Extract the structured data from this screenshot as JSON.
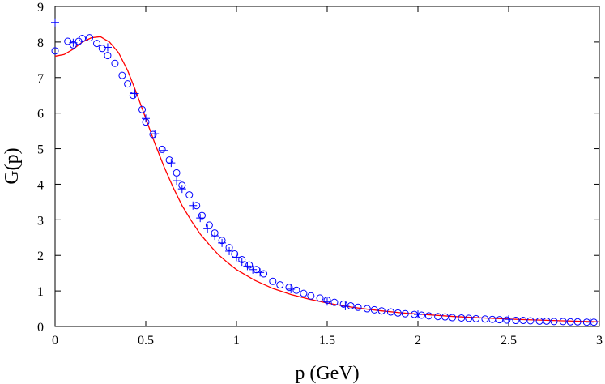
{
  "chart_data": {
    "type": "scatter",
    "xlabel": "p (GeV)",
    "ylabel": "G(p)",
    "xlim": [
      0,
      3
    ],
    "ylim": [
      0,
      9
    ],
    "xticks": [
      "0",
      "0.5",
      "1",
      "1.5",
      "2",
      "2.5",
      "3"
    ],
    "xtick_values": [
      0,
      0.5,
      1,
      1.5,
      2,
      2.5,
      3
    ],
    "yticks": [
      "0",
      "1",
      "2",
      "3",
      "4",
      "5",
      "6",
      "7",
      "8",
      "9"
    ],
    "ytick_values": [
      0,
      1,
      2,
      3,
      4,
      5,
      6,
      7,
      8,
      9
    ],
    "grid": false,
    "series": [
      {
        "marker": "circle",
        "color": "#0000ff",
        "x": [
          0,
          0.07,
          0.1,
          0.13,
          0.15,
          0.19,
          0.23,
          0.26,
          0.29,
          0.33,
          0.37,
          0.4,
          0.43,
          0.48,
          0.5,
          0.54,
          0.59,
          0.63,
          0.67,
          0.7,
          0.74,
          0.78,
          0.81,
          0.85,
          0.88,
          0.92,
          0.96,
          0.99,
          1.03,
          1.07,
          1.11,
          1.15,
          1.2,
          1.24,
          1.29,
          1.33,
          1.37,
          1.41,
          1.46,
          1.5,
          1.54,
          1.59,
          1.63,
          1.67,
          1.72,
          1.76,
          1.8,
          1.85,
          1.89,
          1.93,
          1.98,
          2.02,
          2.06,
          2.11,
          2.15,
          2.19,
          2.24,
          2.28,
          2.32,
          2.37,
          2.41,
          2.45,
          2.49,
          2.54,
          2.58,
          2.62,
          2.67,
          2.71,
          2.75,
          2.8,
          2.84,
          2.88,
          2.93,
          2.97
        ],
        "y": [
          7.75,
          8.02,
          7.92,
          8.02,
          8.1,
          8.12,
          7.96,
          7.82,
          7.62,
          7.4,
          7.06,
          6.82,
          6.5,
          6.1,
          5.75,
          5.4,
          4.98,
          4.68,
          4.32,
          3.97,
          3.7,
          3.4,
          3.12,
          2.85,
          2.63,
          2.42,
          2.22,
          2.04,
          1.88,
          1.73,
          1.6,
          1.48,
          1.27,
          1.17,
          1.1,
          1.02,
          0.93,
          0.86,
          0.8,
          0.74,
          0.68,
          0.63,
          0.58,
          0.54,
          0.5,
          0.47,
          0.44,
          0.41,
          0.38,
          0.36,
          0.34,
          0.32,
          0.3,
          0.28,
          0.27,
          0.25,
          0.24,
          0.23,
          0.22,
          0.21,
          0.2,
          0.19,
          0.18,
          0.17,
          0.17,
          0.16,
          0.15,
          0.15,
          0.14,
          0.14,
          0.13,
          0.13,
          0.12,
          0.12
        ]
      },
      {
        "marker": "plus",
        "color": "#0000ff",
        "x": [
          0,
          0.1,
          0.29,
          0.44,
          0.5,
          0.55,
          0.6,
          0.64,
          0.67,
          0.7,
          0.76,
          0.8,
          0.84,
          0.88,
          0.92,
          0.96,
          1.0,
          1.03,
          1.06,
          1.09,
          1.13,
          1.3,
          1.5,
          1.6,
          2.0,
          2.5,
          2.95
        ],
        "y": [
          8.55,
          7.98,
          7.85,
          6.55,
          5.85,
          5.42,
          4.95,
          4.6,
          4.1,
          3.87,
          3.4,
          3.05,
          2.75,
          2.55,
          2.35,
          2.12,
          1.95,
          1.82,
          1.7,
          1.6,
          1.52,
          1.05,
          0.7,
          0.57,
          0.34,
          0.2,
          0.12
        ]
      },
      {
        "marker": "line",
        "color": "#ff0000",
        "x": [
          0,
          0.05,
          0.1,
          0.15,
          0.2,
          0.25,
          0.3,
          0.35,
          0.4,
          0.45,
          0.5,
          0.55,
          0.6,
          0.65,
          0.7,
          0.75,
          0.8,
          0.85,
          0.9,
          0.95,
          1.0,
          1.1,
          1.2,
          1.3,
          1.4,
          1.5,
          1.6,
          1.7,
          1.8,
          1.9,
          2.0,
          2.2,
          2.4,
          2.6,
          2.8,
          3.0
        ],
        "y": [
          7.6,
          7.65,
          7.8,
          8.0,
          8.12,
          8.15,
          8.0,
          7.7,
          7.2,
          6.55,
          5.85,
          5.15,
          4.5,
          3.92,
          3.4,
          2.98,
          2.6,
          2.3,
          2.02,
          1.8,
          1.6,
          1.3,
          1.07,
          0.9,
          0.77,
          0.66,
          0.57,
          0.5,
          0.44,
          0.39,
          0.35,
          0.28,
          0.23,
          0.19,
          0.16,
          0.13
        ]
      }
    ]
  }
}
